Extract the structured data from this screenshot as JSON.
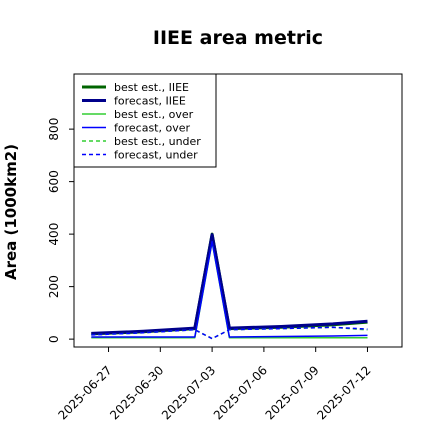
{
  "chart_data": {
    "type": "line",
    "title": "IIEE area metric",
    "ylabel": "Area (1000km2)",
    "xlabel": "",
    "x_range": [
      "2025-06-25",
      "2025-07-14"
    ],
    "ylim": [
      -30,
      1010
    ],
    "y_ticks": [
      0,
      200,
      400,
      600,
      800
    ],
    "x_tick_dates": [
      "2025-06-27",
      "2025-06-30",
      "2025-07-03",
      "2025-07-06",
      "2025-07-09",
      "2025-07-12"
    ],
    "x_tick_labels": [
      "2025-06-27",
      "2025-06-30",
      "2025-07-03",
      "2025-07-06",
      "2025-07-09",
      "2025-07-12"
    ],
    "highlighted_tick": "2025-07-03",
    "highlight_color": "#228B22",
    "grid": false,
    "legend_position": "top-left",
    "series": [
      {
        "name": "best est., IIEE",
        "color": "#006400",
        "dash": "solid",
        "width": 3,
        "x": [
          "2025-06-26",
          "2025-06-29",
          "2025-07-02",
          "2025-07-03",
          "2025-07-04",
          "2025-07-07",
          "2025-07-10",
          "2025-07-12"
        ],
        "y": [
          20,
          28,
          40,
          400,
          40,
          45,
          55,
          65
        ]
      },
      {
        "name": "forecast, IIEE",
        "color": "#00008B",
        "dash": "solid",
        "width": 3,
        "x": [
          "2025-06-26",
          "2025-06-29",
          "2025-07-02",
          "2025-07-03",
          "2025-07-04",
          "2025-07-07",
          "2025-07-10",
          "2025-07-12"
        ],
        "y": [
          22,
          30,
          42,
          398,
          42,
          48,
          58,
          68
        ]
      },
      {
        "name": "best est., over",
        "color": "#32CD32",
        "dash": "solid",
        "width": 1.5,
        "x": [
          "2025-06-26",
          "2025-06-29",
          "2025-07-02",
          "2025-07-03",
          "2025-07-04",
          "2025-07-07",
          "2025-07-10",
          "2025-07-12"
        ],
        "y": [
          5,
          5,
          5,
          370,
          5,
          5,
          5,
          5
        ]
      },
      {
        "name": "forecast, over",
        "color": "#0000FF",
        "dash": "solid",
        "width": 1.5,
        "x": [
          "2025-06-26",
          "2025-06-29",
          "2025-07-02",
          "2025-07-03",
          "2025-07-04",
          "2025-07-07",
          "2025-07-10",
          "2025-07-12"
        ],
        "y": [
          8,
          8,
          8,
          372,
          8,
          10,
          12,
          14
        ]
      },
      {
        "name": "best est., under",
        "color": "#32CD32",
        "dash": "dashed",
        "width": 1.5,
        "x": [
          "2025-06-26",
          "2025-06-29",
          "2025-07-02",
          "2025-07-03",
          "2025-07-04",
          "2025-07-07",
          "2025-07-10",
          "2025-07-12"
        ],
        "y": [
          16,
          24,
          36,
          2,
          36,
          40,
          45,
          35
        ]
      },
      {
        "name": "forecast, under",
        "color": "#0000FF",
        "dash": "dashed",
        "width": 1.5,
        "x": [
          "2025-06-26",
          "2025-06-29",
          "2025-07-02",
          "2025-07-03",
          "2025-07-04",
          "2025-07-07",
          "2025-07-10",
          "2025-07-12"
        ],
        "y": [
          16,
          24,
          36,
          2,
          36,
          40,
          45,
          38
        ]
      }
    ]
  }
}
